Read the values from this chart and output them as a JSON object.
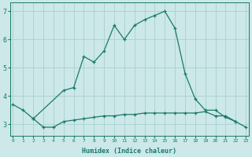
{
  "xlabel": "Humidex (Indice chaleur)",
  "x": [
    0,
    1,
    2,
    3,
    4,
    5,
    6,
    7,
    8,
    9,
    10,
    11,
    12,
    13,
    14,
    15,
    16,
    17,
    18,
    19,
    20,
    21,
    22,
    23
  ],
  "line1_x": [
    0,
    1,
    2,
    5,
    6,
    7,
    8,
    9,
    10,
    11,
    12,
    13,
    14,
    15,
    16,
    17,
    18,
    19,
    20,
    21,
    22
  ],
  "line1_y": [
    3.7,
    3.5,
    3.2,
    4.2,
    4.3,
    5.4,
    5.2,
    5.6,
    6.5,
    6.0,
    6.5,
    6.7,
    6.85,
    7.0,
    6.4,
    4.8,
    3.9,
    3.5,
    3.5,
    3.25,
    3.1
  ],
  "line2_x": [
    2,
    3,
    4,
    5,
    6,
    7,
    8,
    9,
    10,
    11,
    12,
    13,
    14,
    15,
    16,
    17,
    18,
    19,
    20,
    21,
    22,
    23
  ],
  "line2_y": [
    3.2,
    2.9,
    2.9,
    3.1,
    3.15,
    3.2,
    3.25,
    3.3,
    3.3,
    3.35,
    3.35,
    3.4,
    3.4,
    3.4,
    3.4,
    3.4,
    3.4,
    3.45,
    3.3,
    3.3,
    3.1,
    2.9
  ],
  "line_color": "#1a7a6a",
  "bg_color": "#cce8e8",
  "grid_color": "#aad0d0",
  "ylim": [
    2.6,
    7.3
  ],
  "xlim": [
    -0.3,
    23.3
  ],
  "yticks": [
    3,
    4,
    5,
    6,
    7
  ],
  "xticks": [
    0,
    1,
    2,
    3,
    4,
    5,
    6,
    7,
    8,
    9,
    10,
    11,
    12,
    13,
    14,
    15,
    16,
    17,
    18,
    19,
    20,
    21,
    22,
    23
  ]
}
